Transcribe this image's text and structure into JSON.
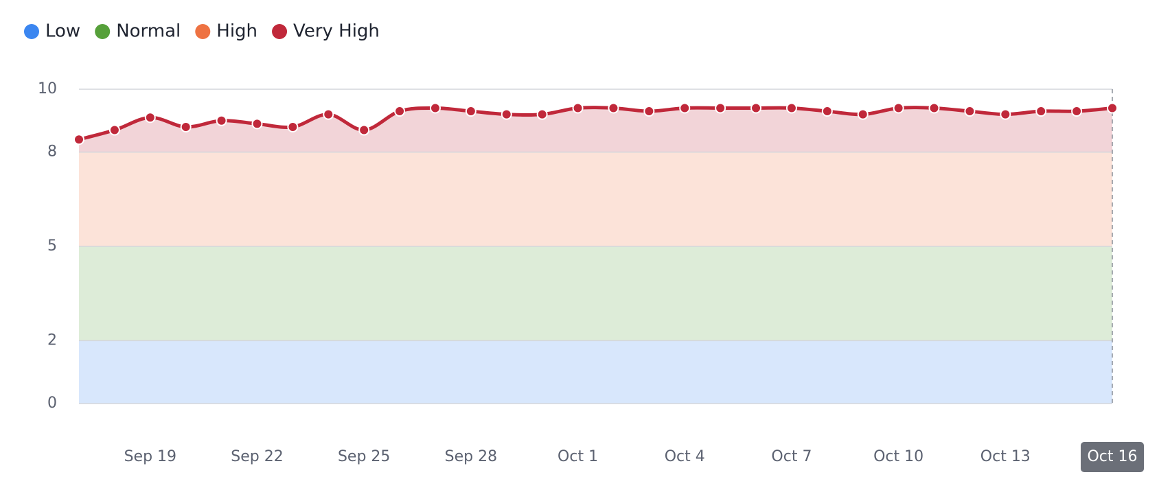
{
  "chart_data": {
    "type": "line",
    "categories": [
      null,
      null,
      "Sep 19",
      null,
      null,
      "Sep 22",
      null,
      null,
      "Sep 25",
      null,
      null,
      "Sep 28",
      null,
      null,
      "Oct 1",
      null,
      null,
      "Oct 4",
      null,
      null,
      "Oct 7",
      null,
      null,
      "Oct 10",
      null,
      null,
      "Oct 13",
      null,
      null,
      "Oct 16"
    ],
    "series": [
      {
        "color": "#c0283a",
        "values": [
          8.4,
          8.7,
          9.1,
          8.8,
          9.0,
          8.9,
          8.8,
          9.2,
          8.7,
          9.3,
          9.4,
          9.3,
          9.2,
          9.2,
          9.4,
          9.4,
          9.3,
          9.4,
          9.4,
          9.4,
          9.4,
          9.3,
          9.2,
          9.4,
          9.4,
          9.3,
          9.2,
          9.3,
          9.3,
          9.4
        ]
      }
    ],
    "bands": [
      {
        "name": "Low",
        "color": "#3b86f0",
        "from": 0,
        "to": 2
      },
      {
        "name": "Normal",
        "color": "#56a03a",
        "from": 2,
        "to": 5
      },
      {
        "name": "High",
        "color": "#ee7242",
        "from": 5,
        "to": 8
      },
      {
        "name": "Very High",
        "color": "#c0283a",
        "from": 8
      }
    ],
    "ylim": [
      0,
      10
    ],
    "yticks": [
      0,
      2,
      5,
      8,
      10
    ],
    "grid": true,
    "legend": "top-left"
  }
}
